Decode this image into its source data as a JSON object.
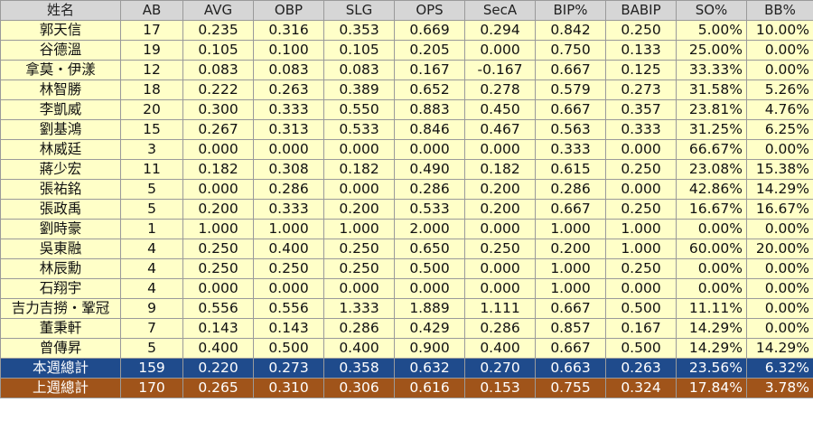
{
  "headers": [
    "姓名",
    "AB",
    "AVG",
    "OBP",
    "SLG",
    "OPS",
    "SecA",
    "BIP%",
    "BABIP",
    "SO%",
    "BB%"
  ],
  "rows": [
    [
      "郭天信",
      "17",
      "0.235",
      "0.316",
      "0.353",
      "0.669",
      "0.294",
      "0.842",
      "0.250",
      "5.00%",
      "10.00%"
    ],
    [
      "谷德溫",
      "19",
      "0.105",
      "0.100",
      "0.105",
      "0.205",
      "0.000",
      "0.750",
      "0.133",
      "25.00%",
      "0.00%"
    ],
    [
      "拿莫・伊漾",
      "12",
      "0.083",
      "0.083",
      "0.083",
      "0.167",
      "-0.167",
      "0.667",
      "0.125",
      "33.33%",
      "0.00%"
    ],
    [
      "林智勝",
      "18",
      "0.222",
      "0.263",
      "0.389",
      "0.652",
      "0.278",
      "0.579",
      "0.273",
      "31.58%",
      "5.26%"
    ],
    [
      "李凱威",
      "20",
      "0.300",
      "0.333",
      "0.550",
      "0.883",
      "0.450",
      "0.667",
      "0.357",
      "23.81%",
      "4.76%"
    ],
    [
      "劉基鴻",
      "15",
      "0.267",
      "0.313",
      "0.533",
      "0.846",
      "0.467",
      "0.563",
      "0.333",
      "31.25%",
      "6.25%"
    ],
    [
      "林威廷",
      "3",
      "0.000",
      "0.000",
      "0.000",
      "0.000",
      "0.000",
      "0.333",
      "0.000",
      "66.67%",
      "0.00%"
    ],
    [
      "蔣少宏",
      "11",
      "0.182",
      "0.308",
      "0.182",
      "0.490",
      "0.182",
      "0.615",
      "0.250",
      "23.08%",
      "15.38%"
    ],
    [
      "張祐銘",
      "5",
      "0.000",
      "0.286",
      "0.000",
      "0.286",
      "0.200",
      "0.286",
      "0.000",
      "42.86%",
      "14.29%"
    ],
    [
      "張政禹",
      "5",
      "0.200",
      "0.333",
      "0.200",
      "0.533",
      "0.200",
      "0.667",
      "0.250",
      "16.67%",
      "16.67%"
    ],
    [
      "劉時豪",
      "1",
      "1.000",
      "1.000",
      "1.000",
      "2.000",
      "0.000",
      "1.000",
      "1.000",
      "0.00%",
      "0.00%"
    ],
    [
      "吳東融",
      "4",
      "0.250",
      "0.400",
      "0.250",
      "0.650",
      "0.250",
      "0.200",
      "1.000",
      "60.00%",
      "20.00%"
    ],
    [
      "林辰勳",
      "4",
      "0.250",
      "0.250",
      "0.250",
      "0.500",
      "0.000",
      "1.000",
      "0.250",
      "0.00%",
      "0.00%"
    ],
    [
      "石翔宇",
      "4",
      "0.000",
      "0.000",
      "0.000",
      "0.000",
      "0.000",
      "1.000",
      "0.000",
      "0.00%",
      "0.00%"
    ],
    [
      "吉力吉撈・鞏冠",
      "9",
      "0.556",
      "0.556",
      "1.333",
      "1.889",
      "1.111",
      "0.667",
      "0.500",
      "11.11%",
      "0.00%"
    ],
    [
      "董秉軒",
      "7",
      "0.143",
      "0.143",
      "0.286",
      "0.429",
      "0.286",
      "0.857",
      "0.167",
      "14.29%",
      "0.00%"
    ],
    [
      "曾傳昇",
      "5",
      "0.400",
      "0.500",
      "0.400",
      "0.900",
      "0.400",
      "0.667",
      "0.500",
      "14.29%",
      "14.29%"
    ]
  ],
  "totals": [
    {
      "key": "week",
      "cells": [
        "本週總計",
        "159",
        "0.220",
        "0.273",
        "0.358",
        "0.632",
        "0.270",
        "0.663",
        "0.263",
        "23.56%",
        "6.32%"
      ]
    },
    {
      "key": "last",
      "cells": [
        "上週總計",
        "170",
        "0.265",
        "0.310",
        "0.306",
        "0.616",
        "0.153",
        "0.755",
        "0.324",
        "17.84%",
        "3.78%"
      ]
    }
  ],
  "colors": {
    "row_bg": "#ffffc8",
    "header_bg": "#d6d6d6",
    "total_week_bg": "#1f4b8c",
    "total_last_bg": "#a0541a"
  }
}
